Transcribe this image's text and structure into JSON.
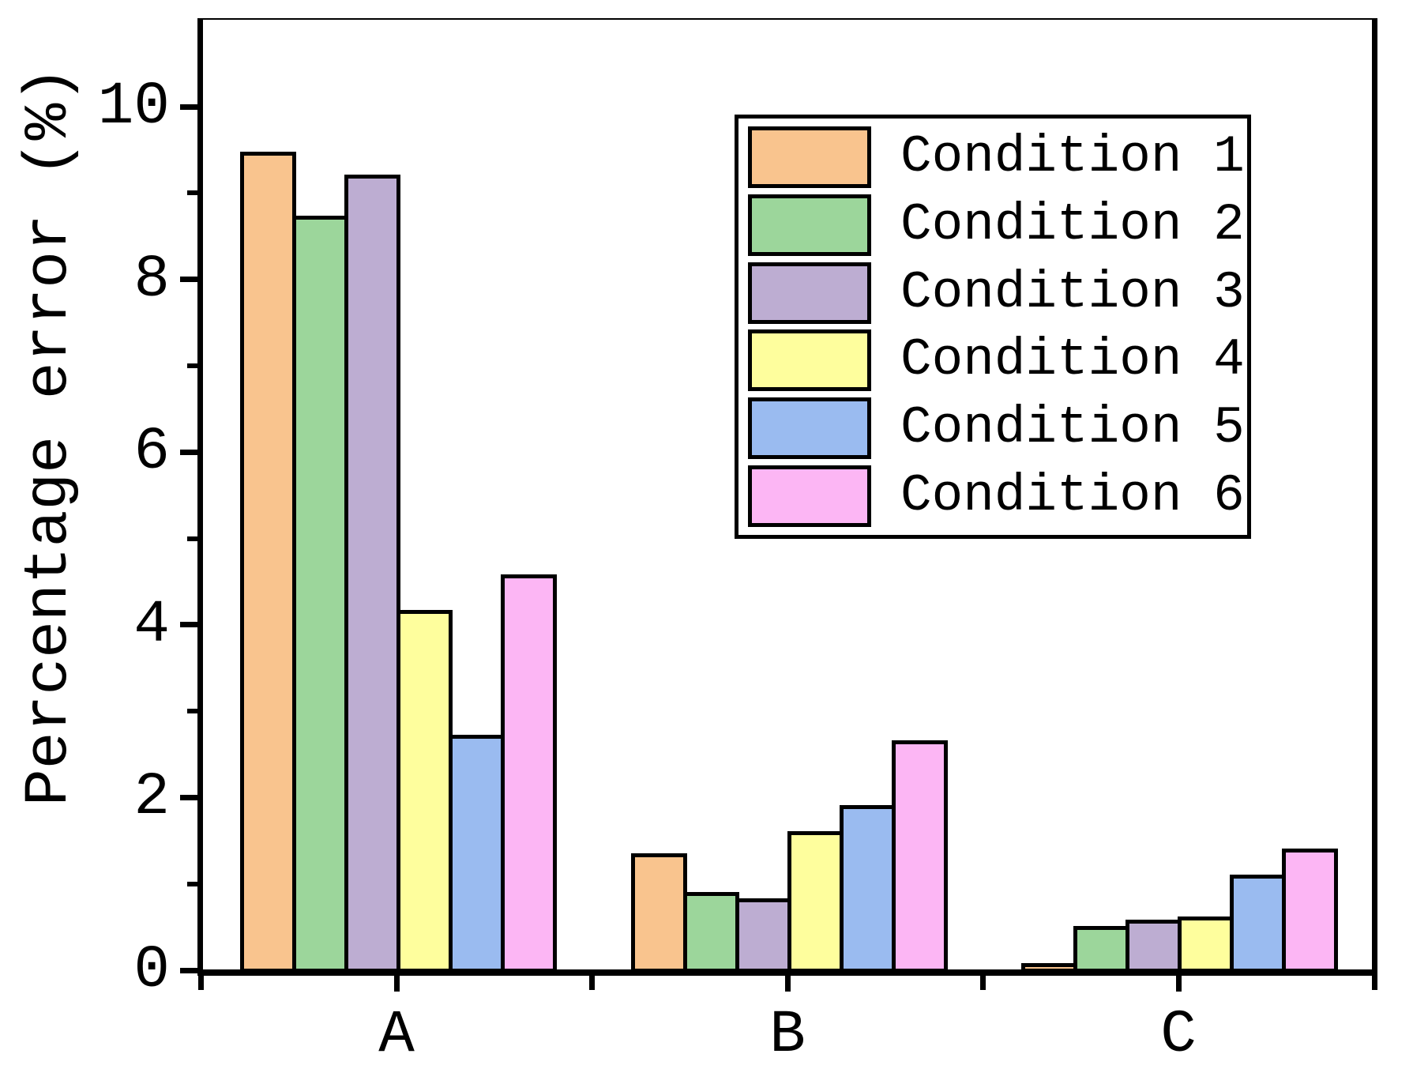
{
  "chart_data": {
    "type": "bar",
    "title": "",
    "ylabel": "Percentage error (%)",
    "xlabel": "",
    "categories": [
      "A",
      "B",
      "C"
    ],
    "series": [
      {
        "name": "Condition 1",
        "color": "#F9C48E",
        "values": [
          9.48,
          1.35,
          0.08
        ]
      },
      {
        "name": "Condition 2",
        "color": "#9CD69B",
        "values": [
          8.74,
          0.91,
          0.51
        ]
      },
      {
        "name": "Condition 3",
        "color": "#BDADD2",
        "values": [
          9.21,
          0.83,
          0.59
        ]
      },
      {
        "name": "Condition 4",
        "color": "#FEFE9D",
        "values": [
          4.17,
          1.61,
          0.62
        ]
      },
      {
        "name": "Condition 5",
        "color": "#9ABBF0",
        "values": [
          2.73,
          1.91,
          1.11
        ]
      },
      {
        "name": "Condition 6",
        "color": "#FCB6F4",
        "values": [
          4.58,
          2.66,
          1.41
        ]
      }
    ],
    "ylim": [
      0,
      11.02
    ],
    "yticks_major": [
      0,
      2,
      4,
      6,
      8,
      10
    ],
    "yticks_minor": [
      1,
      3,
      5,
      7,
      9
    ],
    "ytick_labels": [
      "0",
      "2",
      "4",
      "6",
      "8",
      "10"
    ],
    "legend_position": "upper right",
    "grid": false,
    "axis_color": "#000000",
    "bar_edge_color": "#000000"
  }
}
